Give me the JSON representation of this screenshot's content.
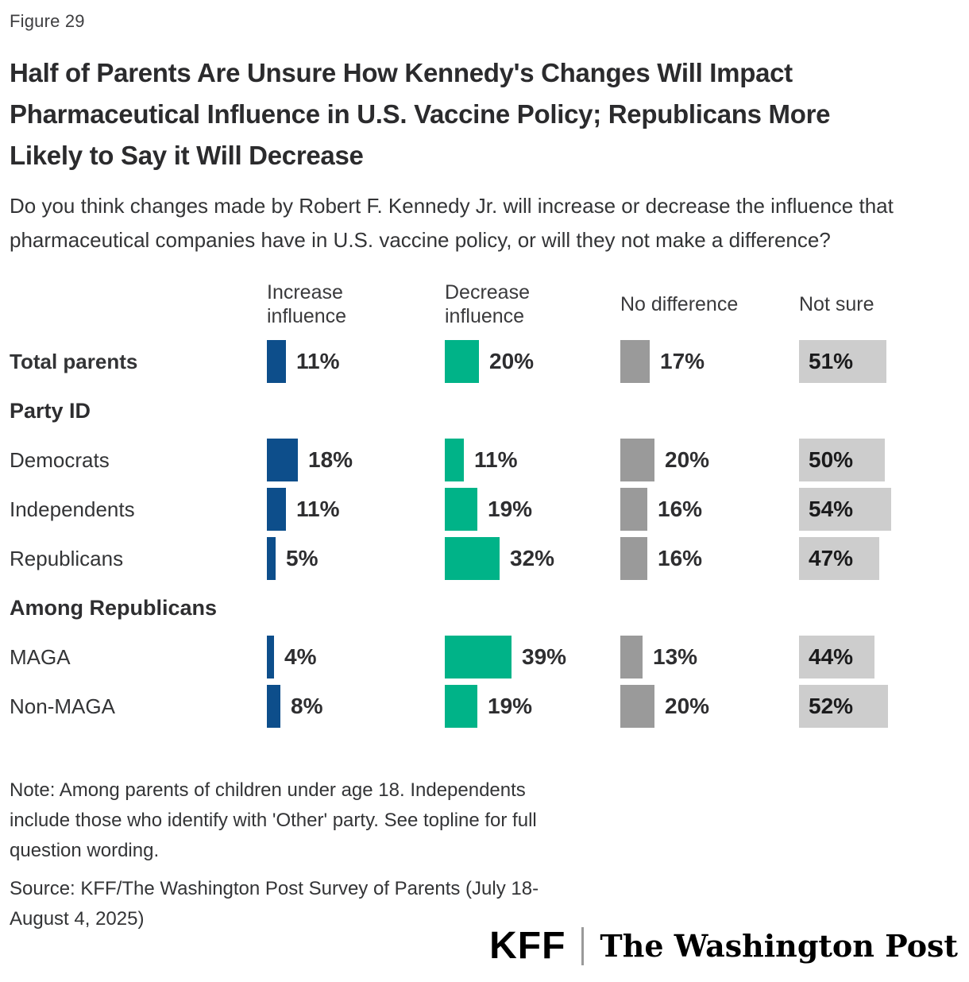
{
  "figure_label": "Figure 29",
  "title": "Half of Parents Are Unsure How Kennedy's Changes Will Impact Pharmaceutical Influence in U.S. Vaccine Policy; Republicans More Likely to Say it Will Decrease",
  "question": "Do you think changes made by Robert F. Kennedy Jr. will increase or decrease the influence that pharmaceutical companies have in U.S. vaccine policy, or will they not make a difference?",
  "chart_data": {
    "type": "bar",
    "orientation": "horizontal",
    "unit": "%",
    "value_range": [
      0,
      100
    ],
    "legend_position": "column-headers",
    "grid": false,
    "columns": [
      {
        "key": "increase",
        "label": "Increase influence",
        "color": "#0d4e8b",
        "value_label_position": "outside"
      },
      {
        "key": "decrease",
        "label": "Decrease influence",
        "color": "#00b388",
        "value_label_position": "outside"
      },
      {
        "key": "no_difference",
        "label": "No difference",
        "color": "#9a9a9a",
        "value_label_position": "outside"
      },
      {
        "key": "not_sure",
        "label": "Not sure",
        "color": "#cdcdcd",
        "value_label_position": "inside"
      }
    ],
    "rows": [
      {
        "type": "data",
        "label": "Total parents",
        "emphasis": true,
        "values": {
          "increase": 11,
          "decrease": 20,
          "no_difference": 17,
          "not_sure": 51
        }
      },
      {
        "type": "section",
        "label": "Party ID"
      },
      {
        "type": "data",
        "label": "Democrats",
        "values": {
          "increase": 18,
          "decrease": 11,
          "no_difference": 20,
          "not_sure": 50
        }
      },
      {
        "type": "data",
        "label": "Independents",
        "values": {
          "increase": 11,
          "decrease": 19,
          "no_difference": 16,
          "not_sure": 54
        }
      },
      {
        "type": "data",
        "label": "Republicans",
        "values": {
          "increase": 5,
          "decrease": 32,
          "no_difference": 16,
          "not_sure": 47
        }
      },
      {
        "type": "section",
        "label": "Among Republicans"
      },
      {
        "type": "data",
        "label": "MAGA",
        "values": {
          "increase": 4,
          "decrease": 39,
          "no_difference": 13,
          "not_sure": 44
        }
      },
      {
        "type": "data",
        "label": "Non-MAGA",
        "values": {
          "increase": 8,
          "decrease": 19,
          "no_difference": 20,
          "not_sure": 52
        }
      }
    ]
  },
  "note": "Note: Among parents of children under age 18. Independents include those who identify with 'Other' party. See topline for full question wording.",
  "source": "Source: KFF/The Washington Post Survey of Parents (July 18-August 4, 2025)",
  "logos": {
    "kff": "KFF",
    "wapo": "The Washington Post"
  }
}
